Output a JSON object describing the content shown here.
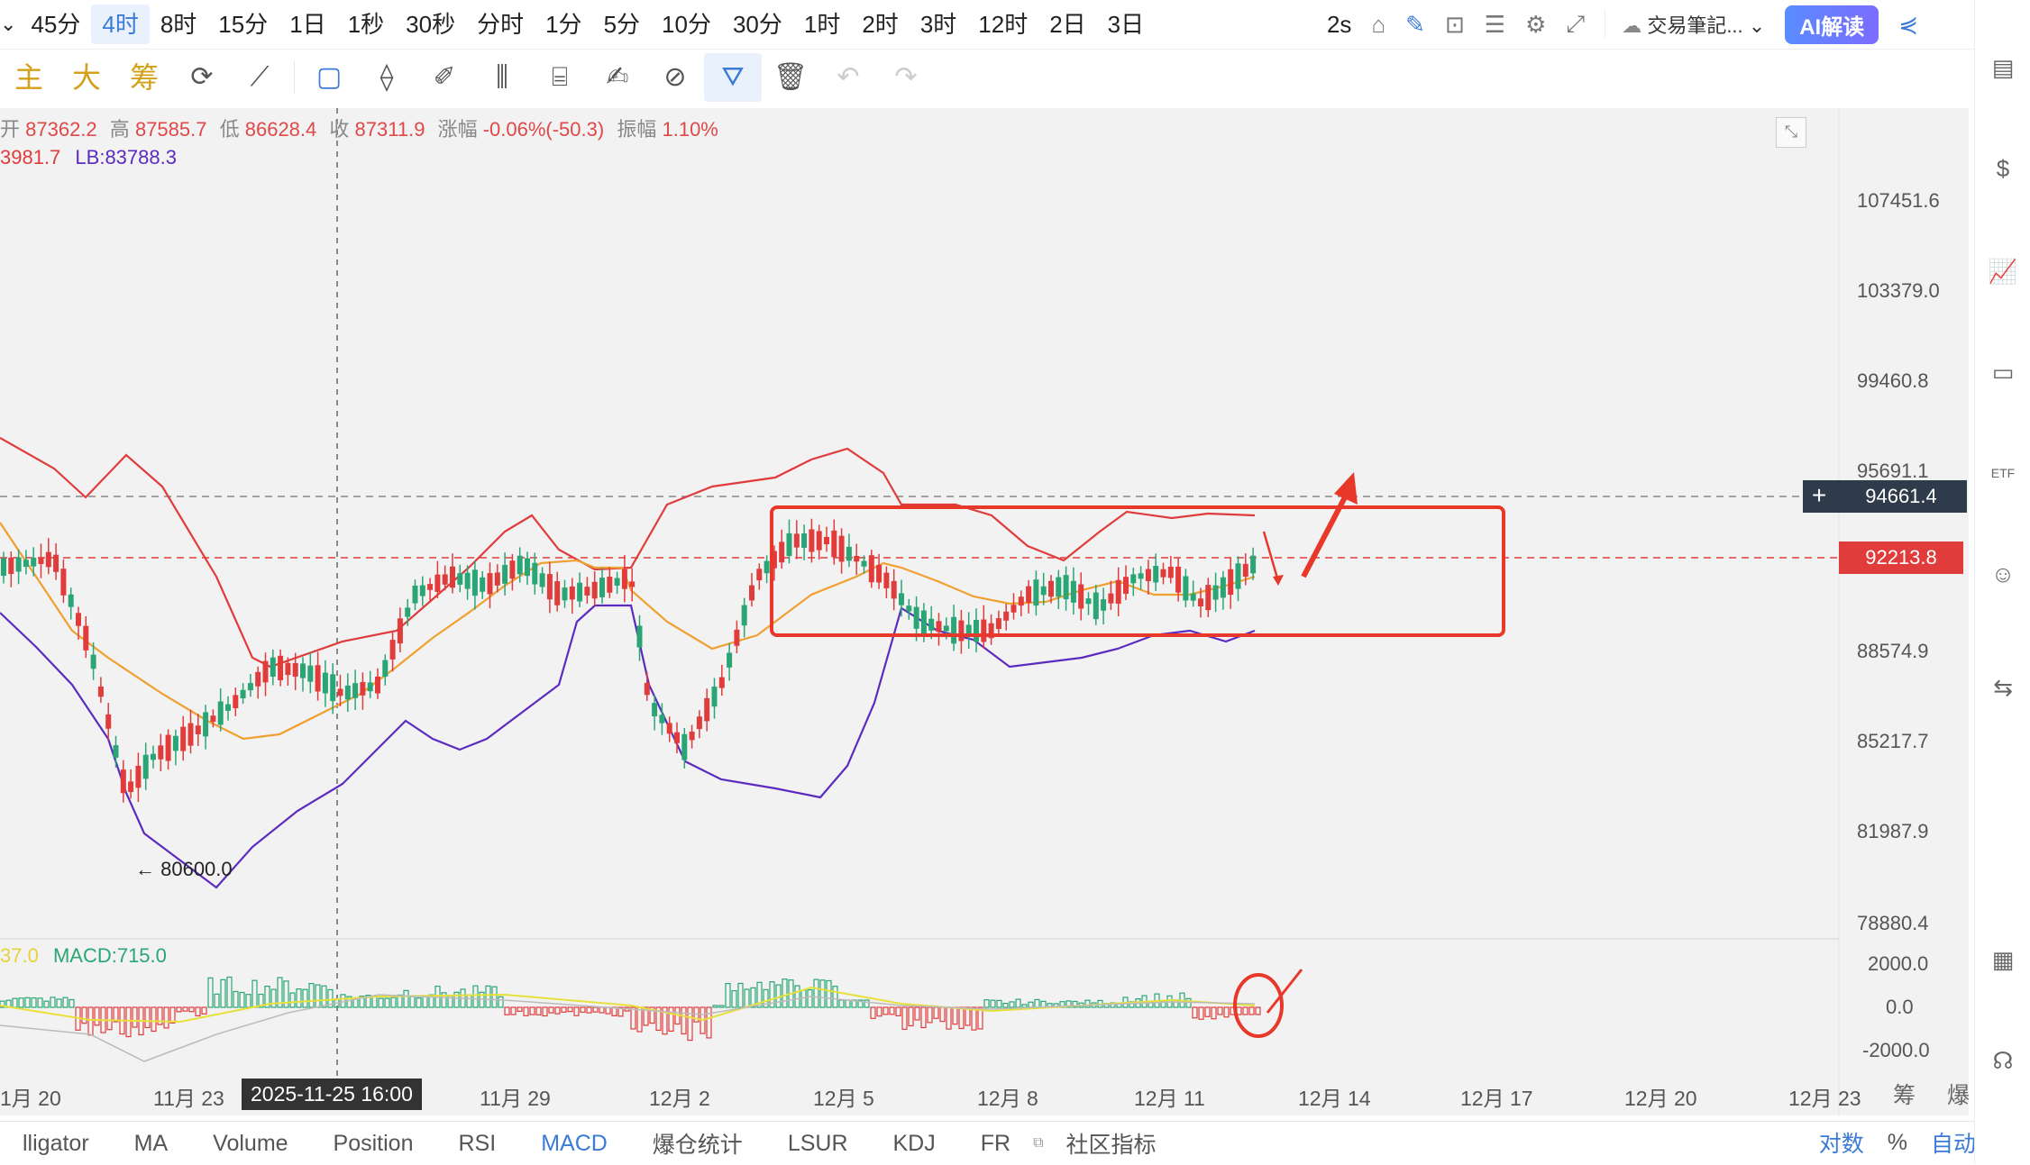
{
  "timeframes": [
    "45分",
    "4时",
    "8时",
    "15分",
    "1日",
    "1秒",
    "30秒",
    "分时",
    "1分",
    "5分",
    "10分",
    "30分",
    "1时",
    "2时",
    "3时",
    "12时",
    "2日",
    "3日"
  ],
  "timeframe_active": "4时",
  "topbar_right": {
    "interval": "2s",
    "notes_label": "交易筆記...",
    "ai_label": "AI解读"
  },
  "toolbar": {
    "indicator_shortcuts": [
      "主",
      "大",
      "筹"
    ]
  },
  "ohlc": {
    "open_label": "开",
    "open": "87362.2",
    "high_label": "高",
    "high": "87585.7",
    "low_label": "低",
    "low": "86628.4",
    "close_label": "收",
    "close": "87311.9",
    "change_label": "涨幅",
    "change": "-0.06%(-50.3)",
    "amp_label": "振幅",
    "amp": "1.10%"
  },
  "boll": {
    "ub_partial": "3981.7",
    "lb": "LB:83788.3"
  },
  "macd_legend": {
    "partial": "37.0",
    "macd": "MACD:715.0"
  },
  "price_axis": [
    "107451.6",
    "103379.0",
    "99460.8",
    "95691.1",
    "88574.9",
    "85217.7",
    "81987.9",
    "78880.4"
  ],
  "macd_axis": [
    "2000.0",
    "0.0",
    "-2000.0"
  ],
  "crosshair_price": "94661.4",
  "last_price": "92213.8",
  "low_marker": "← 80600.0",
  "crosshair_time": "2025-11-25 16:00",
  "time_axis": [
    "1月 20",
    "11月 23",
    "11月 29",
    "12月 2",
    "12月 5",
    "12月 8",
    "12月 11",
    "12月 14",
    "12月 17",
    "12月 20",
    "12月 23"
  ],
  "chip_labels": "筹 爆",
  "bottom_tabs": [
    "lligator",
    "MA",
    "Volume",
    "Position",
    "RSI",
    "MACD",
    "爆仓统计",
    "LSUR",
    "KDJ",
    "FR",
    "社区指标"
  ],
  "bottom_tab_active": "MACD",
  "bottom_right": [
    "对数",
    "%",
    "自动"
  ],
  "colors": {
    "up": "#2aa676",
    "down": "#e03c3c",
    "upper_band": "#e03c3c",
    "lower_band": "#5b2bbf",
    "middle_band": "#f0a030",
    "accent": "#3a7bd5",
    "annotation": "#e8382a"
  }
}
